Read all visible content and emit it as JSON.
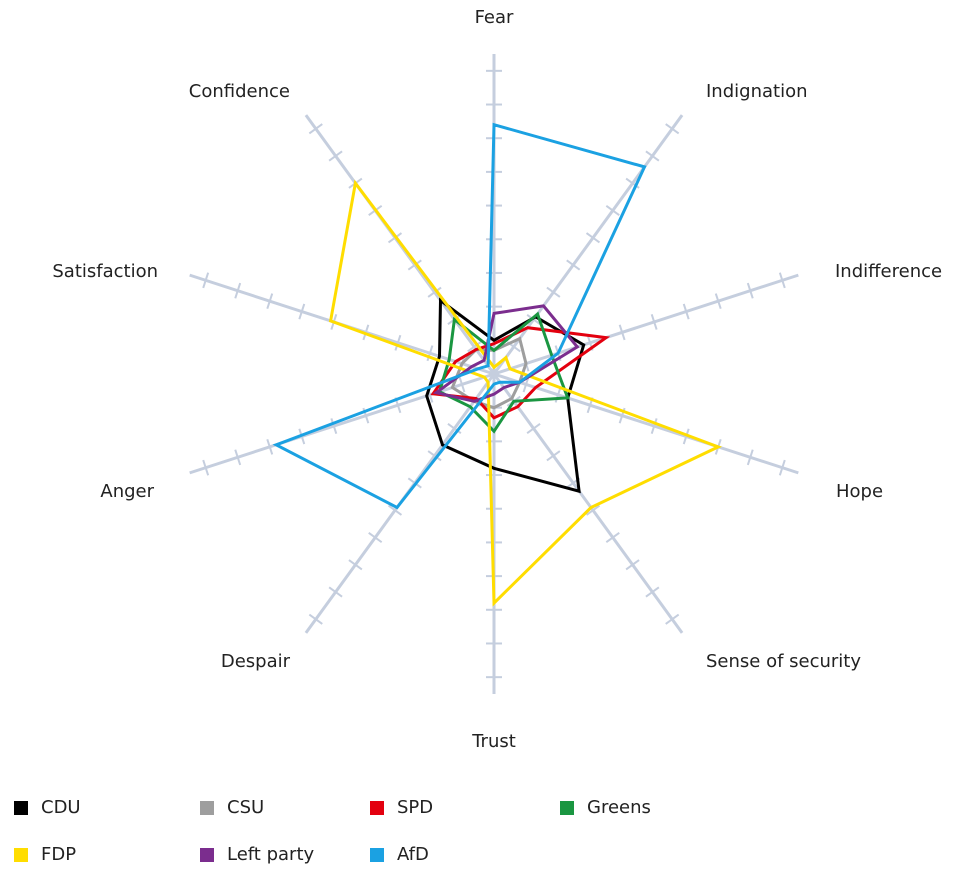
{
  "chart_data": {
    "type": "radar",
    "categories": [
      "Fear",
      "Indignation",
      "Indifference",
      "Hope",
      "Sense of security",
      "Trust",
      "Despair",
      "Anger",
      "Satisfaction",
      "Confidence"
    ],
    "rlim": [
      0,
      9.5
    ],
    "rticks": [
      1,
      2,
      3,
      4,
      5,
      6,
      7,
      8,
      9
    ],
    "series": [
      {
        "name": "CDU",
        "color": "#000000",
        "values": [
          1.0,
          2.1,
          2.8,
          2.3,
          4.3,
          2.8,
          2.6,
          2.1,
          1.7,
          2.7
        ]
      },
      {
        "name": "CSU",
        "color": "#9e9e9e",
        "values": [
          0.7,
          1.3,
          1.0,
          0.8,
          0.9,
          1.0,
          1.0,
          1.3,
          1.0,
          0.9
        ]
      },
      {
        "name": "SPD",
        "color": "#e3000f",
        "values": [
          0.9,
          1.7,
          3.5,
          1.3,
          1.2,
          1.3,
          0.9,
          1.9,
          1.2,
          0.9
        ]
      },
      {
        "name": "Greens",
        "color": "#1a9641",
        "values": [
          0.7,
          2.2,
          1.8,
          2.3,
          1.0,
          1.7,
          1.2,
          1.7,
          1.4,
          2.0
        ]
      },
      {
        "name": "FDP",
        "color": "#ffdd00",
        "values": [
          0.2,
          0.6,
          0.5,
          7.0,
          4.9,
          6.8,
          0.3,
          0.3,
          5.1,
          7.0
        ]
      },
      {
        "name": "Left party",
        "color": "#7b2d8e",
        "values": [
          1.8,
          2.5,
          2.6,
          0.8,
          0.5,
          0.6,
          1.0,
          1.8,
          0.7,
          0.5
        ]
      },
      {
        "name": "AfD",
        "color": "#1ba1e2",
        "values": [
          7.4,
          7.6,
          2.0,
          0.8,
          0.3,
          0.3,
          4.9,
          6.8,
          0.5,
          0.3
        ]
      }
    ]
  }
}
